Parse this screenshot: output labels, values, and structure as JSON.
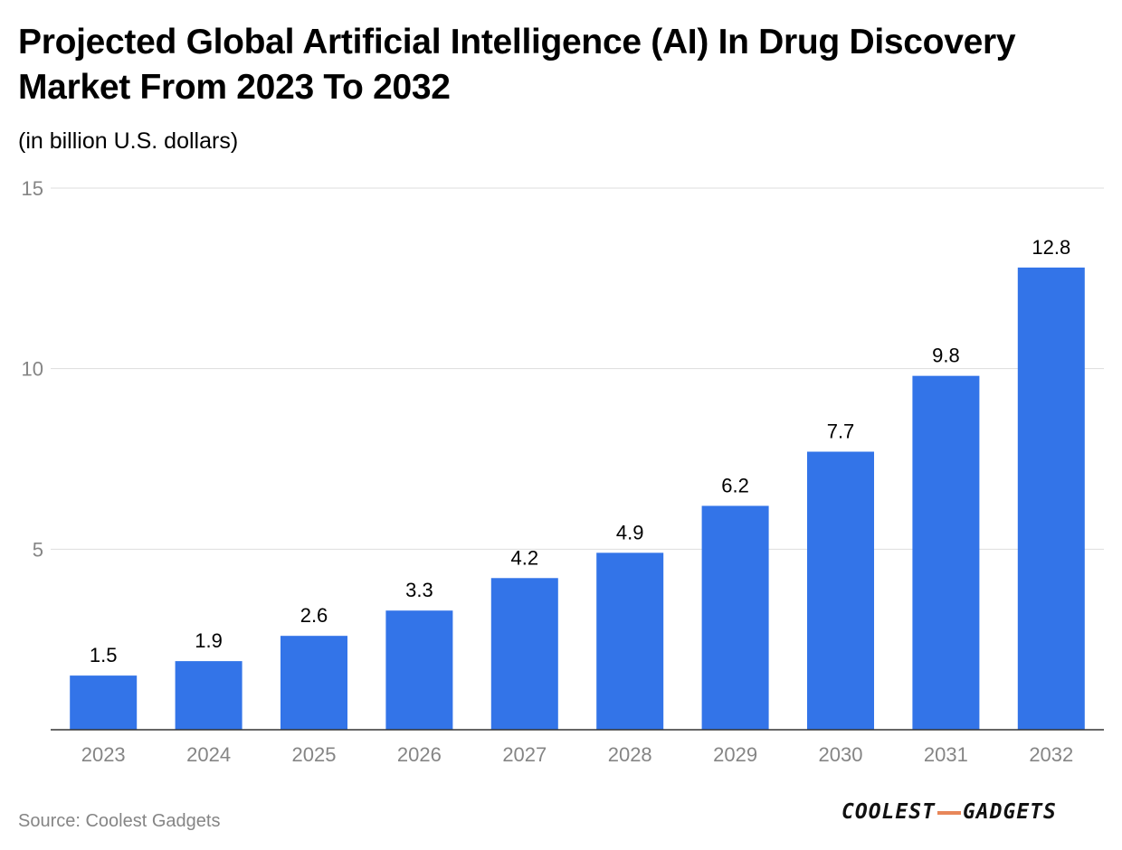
{
  "header": {
    "title": "Projected Global Artificial Intelligence (AI) In Drug Discovery Market From 2023 To 2032",
    "subtitle": "(in billion U.S. dollars)"
  },
  "footer": {
    "source": "Source: Coolest Gadgets",
    "logo_left": "COOLEST",
    "logo_right": "GADGETS"
  },
  "colors": {
    "bar": "#3374E8",
    "grid": "#DDDDDD",
    "axis": "#333333",
    "tick_label": "#858585",
    "value_label": "#000000",
    "logo_accent": "#E8875A"
  },
  "chart_data": {
    "type": "bar",
    "title": "Projected Global Artificial Intelligence (AI) In Drug Discovery Market From 2023 To 2032",
    "subtitle": "(in billion U.S. dollars)",
    "xlabel": "",
    "ylabel": "",
    "categories": [
      "2023",
      "2024",
      "2025",
      "2026",
      "2027",
      "2028",
      "2029",
      "2030",
      "2031",
      "2032"
    ],
    "values": [
      1.5,
      1.9,
      2.6,
      3.3,
      4.2,
      4.9,
      6.2,
      7.7,
      9.8,
      12.8
    ],
    "value_labels": [
      "1.5",
      "1.9",
      "2.6",
      "3.3",
      "4.2",
      "4.9",
      "6.2",
      "7.7",
      "9.8",
      "12.8"
    ],
    "ylim": [
      0,
      15
    ],
    "yticks": [
      5,
      10,
      15
    ],
    "ytick_labels": [
      "5",
      "10",
      "15"
    ],
    "grid": true,
    "legend": "none"
  }
}
